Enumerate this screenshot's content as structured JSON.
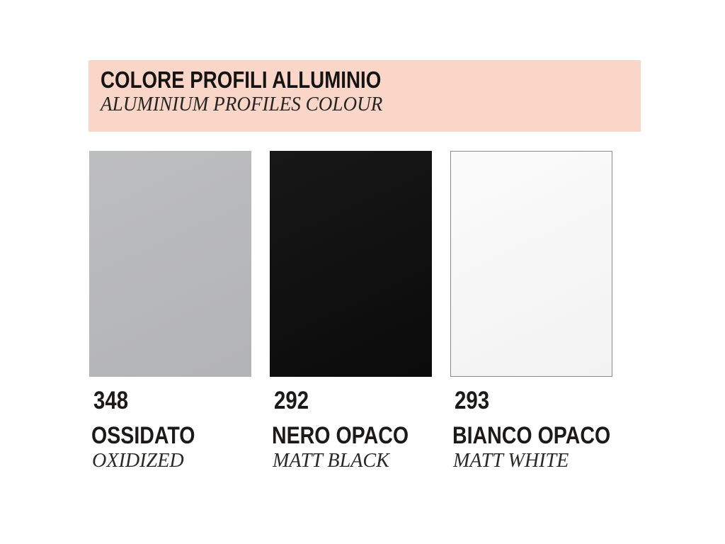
{
  "header": {
    "title": "COLORE PROFILI ALLUMINIO",
    "subtitle": "ALUMINIUM PROFILES COLOUR",
    "background_color": "#f9d6c8"
  },
  "swatches": [
    {
      "code": "348",
      "name": "OSSIDATO",
      "translation": "OXIDIZED",
      "color": "#b9babc",
      "border_color": ""
    },
    {
      "code": "292",
      "name": "NERO OPACO",
      "translation": "MATT BLACK",
      "color": "#0b0b0b",
      "border_color": ""
    },
    {
      "code": "293",
      "name": "BIANCO OPACO",
      "translation": "MATT WHITE",
      "color": "#fbfbfb",
      "border_color": "#8a8a8a"
    }
  ],
  "colors": {
    "page_background": "#ffffff",
    "text": "#1b1a19"
  }
}
